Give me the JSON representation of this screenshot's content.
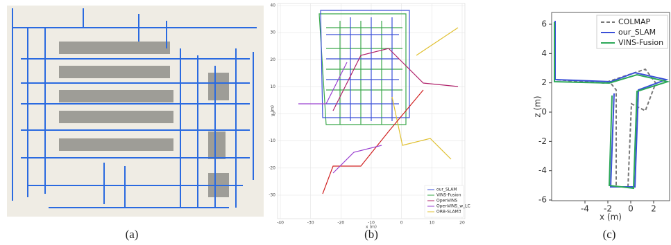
{
  "panels": [
    {
      "caption": "(a)"
    },
    {
      "caption": "(b)",
      "xlabel": "x (m)",
      "ylabel": "y (m)",
      "xticks": [
        -40,
        -30,
        -20,
        -10,
        0,
        10,
        20
      ],
      "yticks": [
        -30,
        -20,
        -10,
        0,
        10,
        20,
        30,
        40
      ],
      "legend": [
        "our_SLAM",
        "VINS-Fusion",
        "OpenVINS",
        "OpenVINS_w_LC",
        "ORB-SLAM3"
      ]
    },
    {
      "caption": "(c)",
      "xlabel": "x (m)",
      "ylabel": "z (m)",
      "xticks": [
        -4,
        -2,
        0,
        2
      ],
      "yticks": [
        -6,
        -4,
        -2,
        0,
        2,
        4,
        6
      ],
      "legend": [
        "COLMAP",
        "our_SLAM",
        "VINS-Fusion"
      ]
    }
  ]
}
